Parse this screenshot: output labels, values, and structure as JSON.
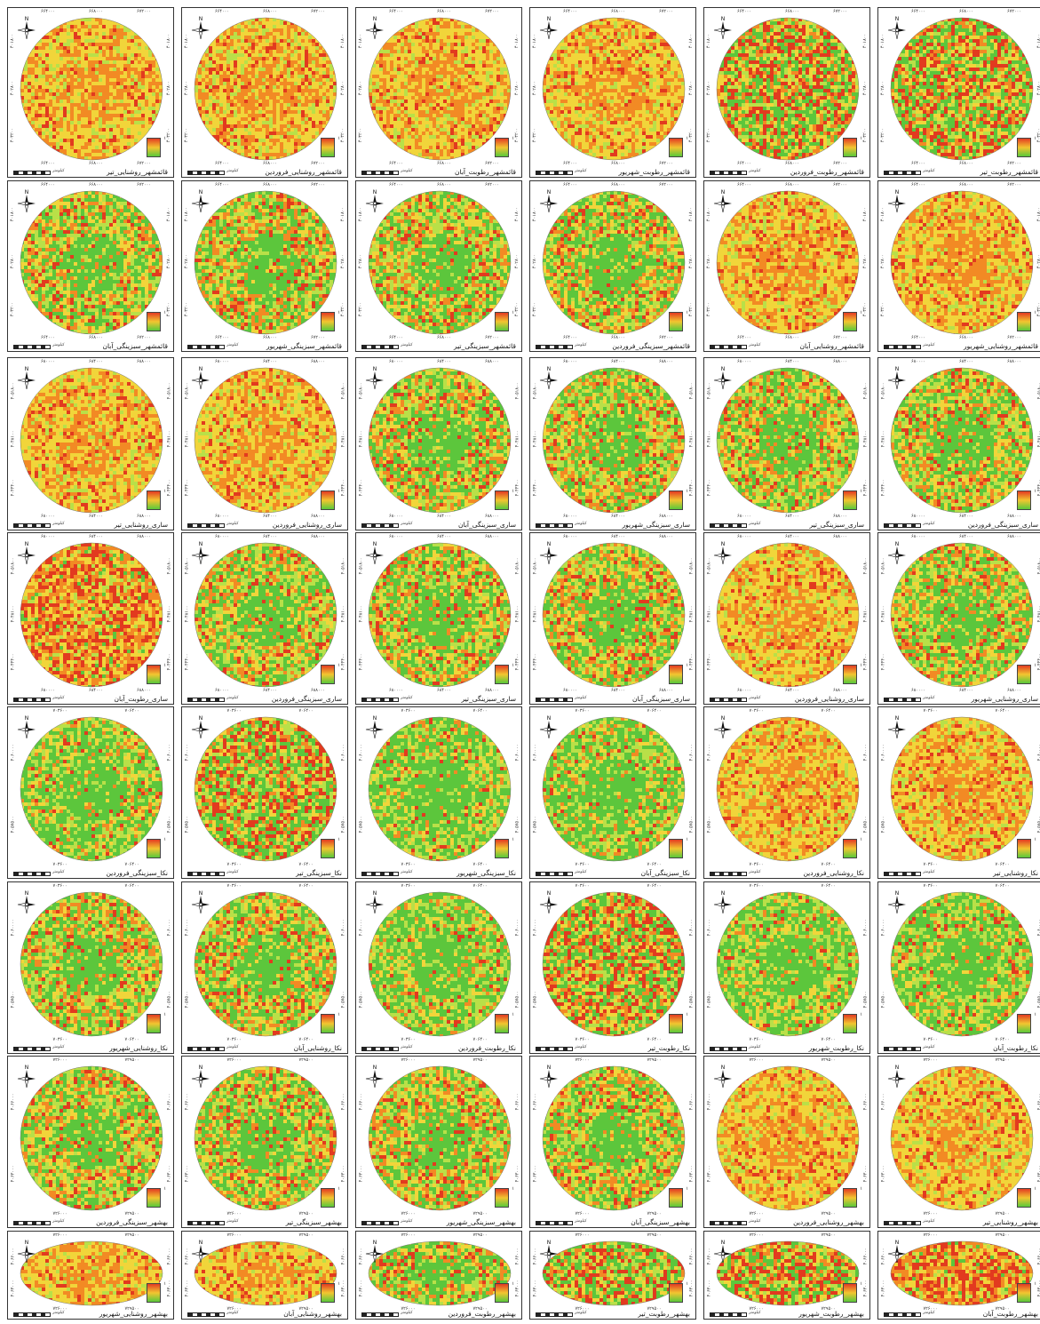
{
  "figure": {
    "legend_value": "۱",
    "unit_label": "کیلومتر",
    "rows": [
      {
        "x_ticks": [
          "۶۶۴۰۰۰",
          "۶۶۸۰۰۰",
          "۶۷۲۰۰۰"
        ],
        "y_ticks": [
          "۴۰۱۸۰۰",
          "۴۰۲۸۰۰",
          "۴۰۳۲۰۰"
        ],
        "panels": [
          {
            "caption": "قائمشهر_روشنایی_تیر",
            "tone": "yellow"
          },
          {
            "caption": "قائمشهر_روشنایی_فروردین",
            "tone": "yellow"
          },
          {
            "caption": "قائمشهر_رطوبت_آبان",
            "tone": "yellow"
          },
          {
            "caption": "قائمشهر_رطوبت_شهریور",
            "tone": "yellow"
          },
          {
            "caption": "قائمشهر_رطوبت_فروردین",
            "tone": "greenred"
          },
          {
            "caption": "قائمشهر_رطوبت_تیر",
            "tone": "greenred"
          }
        ]
      },
      {
        "x_ticks": [
          "۶۶۴۰۰۰",
          "۶۶۸۰۰۰",
          "۶۷۲۰۰۰"
        ],
        "y_ticks": [
          "۴۰۱۸۰۰",
          "۴۰۲۸۰۰",
          "۴۰۳۲۰۰"
        ],
        "panels": [
          {
            "caption": "قائمشهر_سبزینگی_آبان",
            "tone": "mixed"
          },
          {
            "caption": "قائمشهر_سبزینگی_شهریور",
            "tone": "mixed"
          },
          {
            "caption": "قائمشهر_سبزینگی_تیر",
            "tone": "mixed"
          },
          {
            "caption": "قائمشهر_سبزینگی_فروردین",
            "tone": "mixed"
          },
          {
            "caption": "قائمشهر_روشنایی_آبان",
            "tone": "yellow"
          },
          {
            "caption": "قائمشهر_روشنایی_شهریور",
            "tone": "yellow"
          }
        ]
      },
      {
        "x_ticks": [
          "۶۸۰۰۰۰",
          "۶۸۴۰۰۰",
          "۶۸۸۰۰۰"
        ],
        "y_ticks": [
          "۴۰۵۱۸۰۰",
          "۴۰۴۸۱۰۰",
          "۴۰۴۴۴۰۰"
        ],
        "panels": [
          {
            "caption": "ساری_روشنایی_تیر",
            "tone": "yellow"
          },
          {
            "caption": "ساری_روشنایی_فروردین",
            "tone": "yellow"
          },
          {
            "caption": "ساری_سبزینگی_آبان",
            "tone": "mixed"
          },
          {
            "caption": "ساری_سبزینگی_شهریور",
            "tone": "mixed"
          },
          {
            "caption": "ساری_سبزینگی_تیر",
            "tone": "mixed"
          },
          {
            "caption": "ساری_سبزینگی_فروردین",
            "tone": "mixed"
          }
        ]
      },
      {
        "x_ticks": [
          "۶۸۰۰۰۰",
          "۶۸۴۰۰۰",
          "۶۸۸۰۰۰"
        ],
        "y_ticks": [
          "۴۰۵۱۸۰۰",
          "۴۰۴۸۱۰۰",
          "۴۰۴۴۴۰۰"
        ],
        "panels": [
          {
            "caption": "ساری_رطوبت_آبان",
            "tone": "redyellow"
          },
          {
            "caption": "ساری_سبزینگی_فروردین",
            "tone": "mixed"
          },
          {
            "caption": "ساری_سبزینگی_تیر",
            "tone": "mixed"
          },
          {
            "caption": "ساری_سبزینگی_آبان",
            "tone": "mixed"
          },
          {
            "caption": "ساری_روشنایی_فروردین",
            "tone": "yellow"
          },
          {
            "caption": "ساری_روشنایی_شهریور",
            "tone": "mixed"
          }
        ]
      },
      {
        "x_ticks": [
          "۷۰۳۶۰۰",
          "۷۰۶۴۰۰"
        ],
        "y_ticks": [
          "۴۰۶۰۰۰۰",
          "۴۰۵۷۵۰۰"
        ],
        "panels": [
          {
            "caption": "نکا_سبزینگی_فروردین",
            "tone": "green"
          },
          {
            "caption": "نکا_سبزینگی_تیر",
            "tone": "greenred"
          },
          {
            "caption": "نکا_سبزینگی_شهریور",
            "tone": "green"
          },
          {
            "caption": "نکا_سبزینگی_آبان",
            "tone": "green"
          },
          {
            "caption": "نکا_روشنایی_فروردین",
            "tone": "yellow"
          },
          {
            "caption": "نکا_روشنایی_تیر",
            "tone": "yellow"
          }
        ]
      },
      {
        "x_ticks": [
          "۷۰۳۶۰۰",
          "۷۰۶۴۰۰"
        ],
        "y_ticks": [
          "۴۰۶۰۰۰۰",
          "۴۰۵۷۵۰۰"
        ],
        "panels": [
          {
            "caption": "نکا_روشنایی_شهریور",
            "tone": "mixed"
          },
          {
            "caption": "نکا_روشنایی_آبان",
            "tone": "mixed"
          },
          {
            "caption": "نکا_رطوبت_فروردین",
            "tone": "green"
          },
          {
            "caption": "نکا_رطوبت_تیر",
            "tone": "greenred"
          },
          {
            "caption": "نکا_رطوبت_شهریور",
            "tone": "green"
          },
          {
            "caption": "نکا_رطوبت_آبان",
            "tone": "green"
          }
        ]
      },
      {
        "x_ticks": [
          "۷۲۶۰۰۰",
          "۷۲۹۵۰۰"
        ],
        "y_ticks": [
          "۴۰۶۶۰۰۰",
          "۴۰۶۳۰۰۰"
        ],
        "panels": [
          {
            "caption": "بهشهر_سبزینگی_فروردین",
            "tone": "mixed"
          },
          {
            "caption": "بهشهر_سبزینگی_تیر",
            "tone": "mixed"
          },
          {
            "caption": "بهشهر_سبزینگی_شهریور",
            "tone": "mixed"
          },
          {
            "caption": "بهشهر_سبزینگی_آبان",
            "tone": "mixed"
          },
          {
            "caption": "بهشهر_روشنایی_فروردین",
            "tone": "yellow"
          },
          {
            "caption": "بهشهر_روشنایی_تیر",
            "tone": "yellow"
          }
        ]
      },
      {
        "x_ticks": [
          "۷۲۶۰۰۰",
          "۷۲۹۵۰۰"
        ],
        "y_ticks": [
          "۴۰۶۶۰۰۰",
          "۴۰۶۳۰۰۰"
        ],
        "panels": [
          {
            "caption": "بهشهر_روشنایی_شهریور",
            "tone": "yellow"
          },
          {
            "caption": "بهشهر_روشنایی_آبان",
            "tone": "yellow"
          },
          {
            "caption": "بهشهر_رطوبت_فروردین",
            "tone": "mixed"
          },
          {
            "caption": "بهشهر_رطوبت_تیر",
            "tone": "greenred"
          },
          {
            "caption": "بهشهر_رطوبت_شهریور",
            "tone": "greenred"
          },
          {
            "caption": "بهشهر_رطوبت_آبان",
            "tone": "redyellow"
          }
        ]
      }
    ],
    "palette": {
      "red": "#e23a1f",
      "orange": "#f28a24",
      "yellow": "#f1d53a",
      "lightgreen": "#b9e048",
      "green": "#5cc63c",
      "frame": "#333333"
    }
  }
}
